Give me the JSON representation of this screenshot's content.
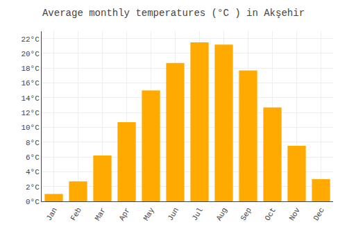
{
  "chart_data": {
    "type": "bar",
    "title": "Average monthly temperatures (°C ) in Akşehir",
    "categories": [
      "Jan",
      "Feb",
      "Mar",
      "Apr",
      "May",
      "Jun",
      "Jul",
      "Aug",
      "Sep",
      "Oct",
      "Nov",
      "Dec"
    ],
    "values": [
      1.0,
      2.7,
      6.2,
      10.7,
      15.0,
      18.7,
      21.5,
      21.2,
      17.7,
      12.7,
      7.5,
      3.0
    ],
    "color": "#FFAA00",
    "ylim": [
      0,
      23
    ],
    "yticks": [
      {
        "value": 0,
        "label": "0°C"
      },
      {
        "value": 2,
        "label": "2°C"
      },
      {
        "value": 4,
        "label": "4°C"
      },
      {
        "value": 6,
        "label": "6°C"
      },
      {
        "value": 8,
        "label": "8°C"
      },
      {
        "value": 10,
        "label": "10°C"
      },
      {
        "value": 12,
        "label": "12°C"
      },
      {
        "value": 14,
        "label": "14°C"
      },
      {
        "value": 16,
        "label": "16°C"
      },
      {
        "value": 18,
        "label": "18°C"
      },
      {
        "value": 20,
        "label": "20°C"
      },
      {
        "value": 22,
        "label": "22°C"
      }
    ],
    "grid": true
  }
}
